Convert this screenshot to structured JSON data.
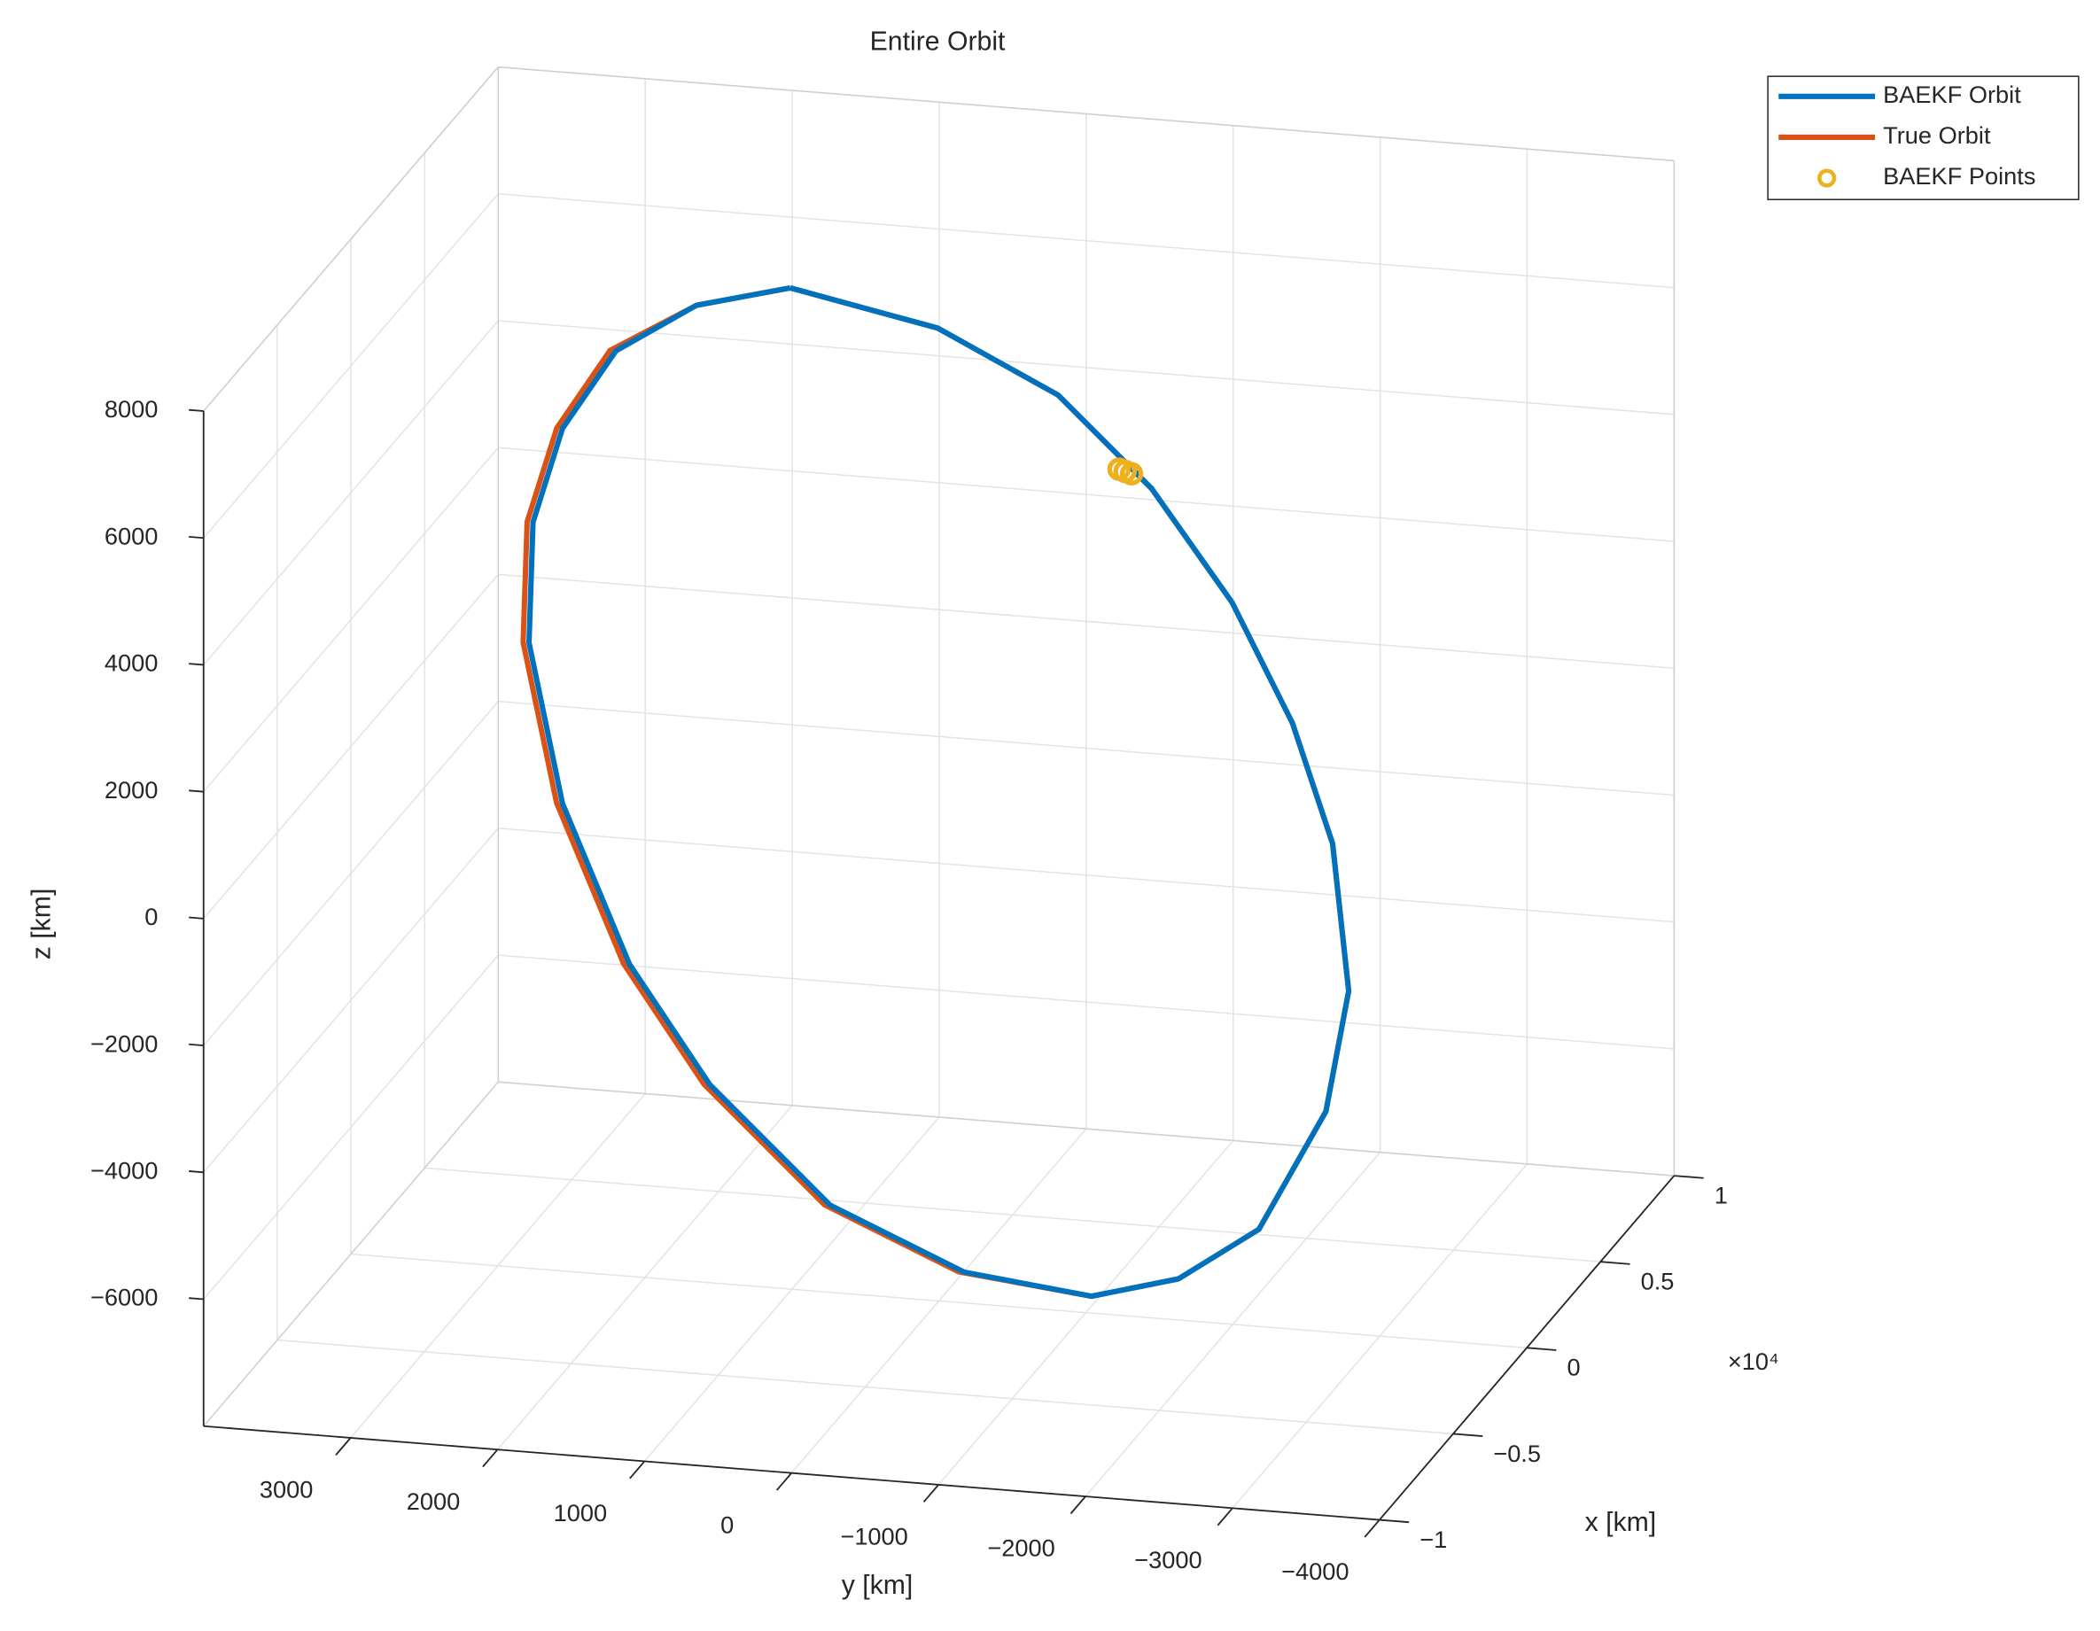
{
  "chart_data": {
    "type": "line3d",
    "title": "Entire Orbit",
    "xlabel": "x [km]",
    "ylabel": "y [km]",
    "zlabel": "z [km]",
    "x_exponent_label": "×10⁴",
    "xlim": [
      -10000,
      10000
    ],
    "ylim": [
      -4000,
      4000
    ],
    "zlim": [
      -8000,
      8000
    ],
    "xticks": [
      {
        "value": -10000,
        "label": "−1"
      },
      {
        "value": -5000,
        "label": "−0.5"
      },
      0,
      {
        "value": 5000,
        "label": "0.5"
      },
      {
        "value": 10000,
        "label": "1"
      }
    ],
    "yticks": [
      {
        "value": -4000,
        "label": "−4000"
      },
      {
        "value": -3000,
        "label": "−3000"
      },
      {
        "value": -2000,
        "label": "−2000"
      },
      {
        "value": -1000,
        "label": "−1000"
      },
      0,
      1000,
      2000,
      3000
    ],
    "zticks": [
      {
        "value": -6000,
        "label": "−6000"
      },
      {
        "value": -4000,
        "label": "−4000"
      },
      {
        "value": -2000,
        "label": "−2000"
      },
      0,
      2000,
      4000,
      6000,
      8000
    ],
    "grid": true,
    "legend": "northeastoutside",
    "series": [
      {
        "name": "BAEKF Orbit",
        "color": "#0072BD",
        "mode": "line",
        "x": [
          6929,
          6529,
          5725,
          4514,
          3006,
          1382,
          -264,
          -2314,
          -4031,
          -5760,
          -6545,
          -6887,
          -6691,
          -5902,
          -4344,
          -2742,
          -562,
          1656,
          3352,
          4700,
          5850,
          6580,
          6929
        ],
        "y": [
          1706,
          663,
          -237,
          -996,
          -1694,
          -2267,
          -2705,
          -3020,
          -3037,
          -2755,
          -2287,
          -1729,
          -844,
          147,
          1123,
          1830,
          2504,
          2954,
          3097,
          3031,
          2783,
          2309,
          1706
        ],
        "z": [
          5774,
          5441,
          4771,
          3762,
          2505,
          1152,
          -220,
          -1928,
          -3359,
          -4800,
          -5454,
          -5739,
          -5576,
          -4918,
          -3620,
          -2285,
          -468,
          1380,
          2793,
          3917,
          4875,
          5483,
          5774
        ]
      },
      {
        "name": "True Orbit",
        "color": "#D95319",
        "mode": "line",
        "x": [
          6929,
          6529,
          5725,
          4514,
          3006,
          1382,
          -264,
          -2314,
          -4031,
          -5760,
          -6545,
          -6887,
          -6691,
          -5902,
          -4344,
          -2742,
          -562,
          1656,
          3352,
          4700,
          5850,
          6580,
          6929
        ],
        "y": [
          1706,
          663,
          -237,
          -996,
          -1694,
          -2267,
          -2705,
          -3020,
          -3037,
          -2755,
          -2287,
          -1729,
          -804,
          187,
          1163,
          1870,
          2544,
          2994,
          3137,
          3071,
          2823,
          2309,
          1706
        ],
        "z": [
          5774,
          5441,
          4771,
          3762,
          2505,
          1152,
          -220,
          -1928,
          -3359,
          -4800,
          -5454,
          -5739,
          -5576,
          -4918,
          -3620,
          -2285,
          -468,
          1380,
          2793,
          3917,
          4875,
          5483,
          5774
        ]
      },
      {
        "name": "BAEKF Points",
        "color": "#EDB120",
        "mode": "markers",
        "x": [
          4650,
          4728,
          4800
        ],
        "y": [
          -760,
          -793,
          -830
        ],
        "z": [
          3990,
          3940,
          3890
        ]
      }
    ]
  }
}
